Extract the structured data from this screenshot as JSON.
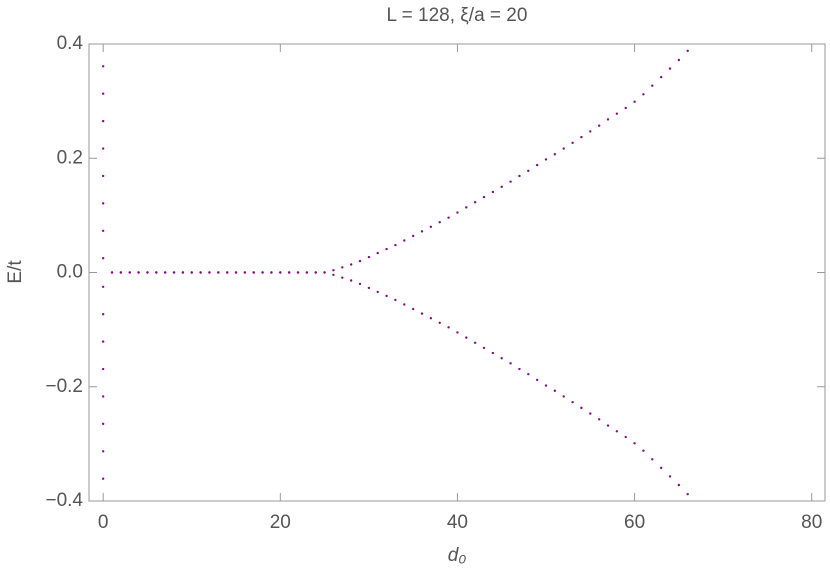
{
  "chart_data": {
    "type": "scatter",
    "title": "L = 128, ξ/a = 20",
    "xlabel": "d₀",
    "ylabel": "E/t",
    "xlim": [
      -1.6,
      81.5
    ],
    "ylim": [
      -0.4,
      0.4
    ],
    "xticks": [
      0,
      20,
      40,
      60,
      80
    ],
    "yticks": [
      {
        "value": -0.4,
        "label": "−0.4"
      },
      {
        "value": -0.2,
        "label": "−0.2"
      },
      {
        "value": 0,
        "label": "0.0"
      },
      0.2,
      0.4
    ],
    "series": [
      {
        "color": "#8a0a8a",
        "x": [
          0,
          0,
          0,
          0,
          0,
          0,
          0,
          0,
          0,
          0,
          0,
          0,
          0,
          0,
          0,
          0
        ],
        "values": [
          -0.361,
          -0.313,
          -0.265,
          -0.217,
          -0.169,
          -0.121,
          -0.073,
          -0.025,
          0.025,
          0.073,
          0.121,
          0.169,
          0.217,
          0.265,
          0.313,
          0.361
        ]
      },
      {
        "color": "#8a0a8a",
        "x": [
          1,
          2,
          3,
          4,
          5,
          6,
          7,
          8,
          9,
          10,
          11,
          12,
          13,
          14,
          15,
          16,
          17,
          18,
          19,
          20,
          21,
          22,
          23,
          24,
          25,
          26,
          27,
          28,
          29,
          30,
          31,
          32,
          33,
          34,
          35,
          36,
          37,
          38,
          39,
          40,
          41,
          42,
          43,
          44,
          45,
          46,
          47,
          48,
          49,
          50,
          51,
          52,
          53,
          54,
          55,
          56,
          57,
          58,
          59,
          60,
          61,
          62,
          63,
          64,
          65,
          66
        ],
        "values": [
          0,
          0,
          0,
          0,
          0,
          0,
          0,
          0,
          0,
          0,
          0,
          0,
          0,
          0,
          0,
          0,
          0,
          0,
          0,
          0,
          0,
          0,
          0,
          0,
          0,
          0.004,
          0.009,
          0.014,
          0.02,
          0.027,
          0.034,
          0.041,
          0.048,
          0.056,
          0.064,
          0.072,
          0.08,
          0.088,
          0.096,
          0.105,
          0.114,
          0.123,
          0.132,
          0.141,
          0.15,
          0.159,
          0.169,
          0.178,
          0.188,
          0.198,
          0.207,
          0.217,
          0.227,
          0.237,
          0.247,
          0.257,
          0.268,
          0.278,
          0.288,
          0.299,
          0.312,
          0.327,
          0.342,
          0.357,
          0.372,
          0.388
        ]
      },
      {
        "color": "#8a0a8a",
        "x": [
          1,
          2,
          3,
          4,
          5,
          6,
          7,
          8,
          9,
          10,
          11,
          12,
          13,
          14,
          15,
          16,
          17,
          18,
          19,
          20,
          21,
          22,
          23,
          24,
          25,
          26,
          27,
          28,
          29,
          30,
          31,
          32,
          33,
          34,
          35,
          36,
          37,
          38,
          39,
          40,
          41,
          42,
          43,
          44,
          45,
          46,
          47,
          48,
          49,
          50,
          51,
          52,
          53,
          54,
          55,
          56,
          57,
          58,
          59,
          60,
          61,
          62,
          63,
          64,
          65,
          66
        ],
        "values": [
          0,
          0,
          0,
          0,
          0,
          0,
          0,
          0,
          0,
          0,
          0,
          0,
          0,
          0,
          0,
          0,
          0,
          0,
          0,
          0,
          0,
          0,
          0,
          0,
          0,
          -0.004,
          -0.009,
          -0.014,
          -0.02,
          -0.027,
          -0.034,
          -0.041,
          -0.048,
          -0.056,
          -0.064,
          -0.072,
          -0.08,
          -0.088,
          -0.096,
          -0.105,
          -0.114,
          -0.123,
          -0.132,
          -0.141,
          -0.15,
          -0.159,
          -0.169,
          -0.178,
          -0.188,
          -0.198,
          -0.207,
          -0.217,
          -0.227,
          -0.237,
          -0.247,
          -0.257,
          -0.268,
          -0.278,
          -0.288,
          -0.299,
          -0.312,
          -0.327,
          -0.342,
          -0.357,
          -0.372,
          -0.388
        ]
      }
    ]
  }
}
